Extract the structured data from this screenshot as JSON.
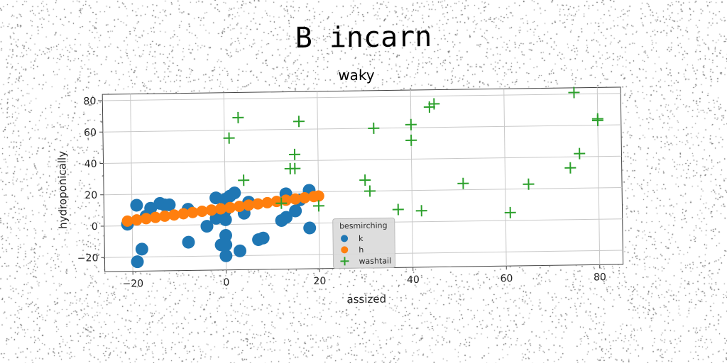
{
  "figure": {
    "suptitle": "B incarn"
  },
  "chart_data": {
    "type": "scatter",
    "title": "waky",
    "xlabel": "assized",
    "ylabel": "hydroponically",
    "xlim": [
      -26,
      85
    ],
    "ylim": [
      -29,
      84
    ],
    "xticks": [
      -20,
      0,
      20,
      40,
      60,
      80
    ],
    "yticks": [
      -20,
      0,
      20,
      40,
      60,
      80
    ],
    "xtick_labels": [
      "−20",
      "0",
      "20",
      "40",
      "60",
      "80"
    ],
    "ytick_labels": [
      "−20",
      "0",
      "20",
      "40",
      "60",
      "80"
    ],
    "grid": true,
    "legend": {
      "title": "besmirching",
      "placement": "lower-center"
    },
    "series": [
      {
        "name": "k",
        "marker": "circle",
        "color": "#1f77b4",
        "x": [
          -21,
          -19,
          -19,
          -18,
          -17,
          -16,
          -14,
          -13,
          -12,
          -8,
          -8,
          -4,
          -2,
          -2,
          -1,
          0,
          0,
          0,
          0,
          0,
          0,
          1,
          2,
          3,
          4,
          5,
          7,
          8,
          12,
          13,
          13,
          15,
          16,
          18,
          18
        ],
        "y": [
          1,
          13,
          -23,
          -15,
          6,
          11,
          14,
          13,
          13,
          -11,
          10,
          -1,
          17,
          4,
          -13,
          -20,
          -7,
          3,
          9,
          16,
          -13,
          18,
          20,
          -17,
          7,
          14,
          -10,
          -9,
          2,
          19,
          4,
          8,
          15,
          21,
          -3
        ]
      },
      {
        "name": "h",
        "marker": "circle",
        "color": "#ff7f0e",
        "x": [
          -21,
          -19,
          -17,
          -15,
          -13,
          -11,
          -9,
          -7,
          -5,
          -3,
          -1,
          1,
          3,
          5,
          7,
          9,
          11,
          13,
          15,
          17,
          19,
          20
        ],
        "y": [
          3.0,
          3.7,
          4.4,
          5.1,
          5.8,
          6.5,
          7.2,
          7.9,
          8.6,
          9.3,
          10.0,
          10.7,
          11.4,
          12.1,
          12.8,
          13.5,
          14.2,
          14.9,
          15.6,
          16.3,
          17.0,
          17.3
        ]
      },
      {
        "name": "washtail",
        "marker": "plus",
        "color": "#2ca02c",
        "x": [
          1,
          3,
          4,
          12,
          14,
          15,
          15,
          16,
          20,
          30,
          31,
          32,
          37,
          40,
          40,
          42,
          44,
          45,
          51,
          61,
          65,
          74,
          75,
          76,
          80,
          80
        ],
        "y": [
          55,
          68,
          28,
          13,
          35,
          44,
          35,
          65,
          11,
          27,
          20,
          60,
          8,
          62,
          52,
          7,
          73,
          75,
          24,
          5,
          23,
          33,
          81,
          42,
          63,
          64
        ]
      }
    ]
  }
}
